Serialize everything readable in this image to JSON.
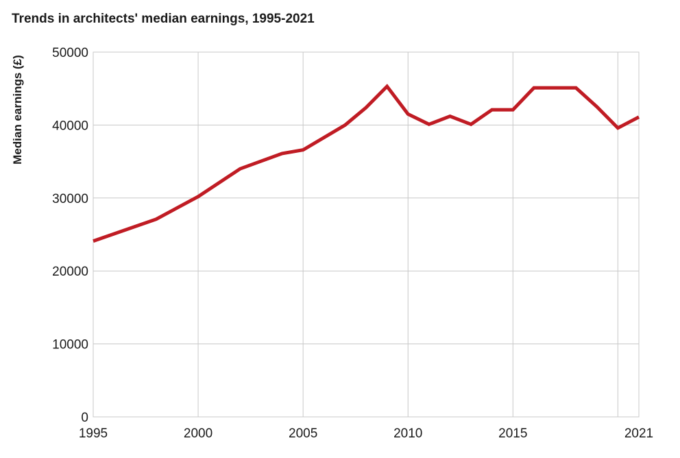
{
  "chart_data": {
    "type": "line",
    "title": "Trends in architects' median earnings, 1995-2021",
    "xlabel": "",
    "ylabel": "Median earnings (£)",
    "xlim": [
      1995,
      2021
    ],
    "ylim": [
      0,
      50000
    ],
    "x_ticks": [
      1995,
      2000,
      2005,
      2010,
      2015,
      2021
    ],
    "x_tick_labels": [
      "1995",
      "2000",
      "2005",
      "2010",
      "2015",
      "2021"
    ],
    "x_gridlines": [
      1995,
      2000,
      2005,
      2010,
      2015,
      2020
    ],
    "y_ticks": [
      0,
      10000,
      20000,
      30000,
      40000,
      50000
    ],
    "y_tick_labels": [
      "0",
      "10000",
      "20000",
      "30000",
      "40000",
      "50000"
    ],
    "grid": true,
    "series": [
      {
        "color": "#c01c24",
        "x": [
          1995,
          1998,
          2000,
          2002,
          2004,
          2005,
          2007,
          2008,
          2009,
          2010,
          2011,
          2012,
          2013,
          2014,
          2015,
          2016,
          2017,
          2018,
          2019,
          2020,
          2021
        ],
        "y": [
          24100,
          27100,
          30200,
          34000,
          36100,
          36600,
          40000,
          42400,
          45300,
          41500,
          40100,
          41200,
          40100,
          42100,
          42100,
          45100,
          45100,
          45100,
          42500,
          39600,
          41100
        ]
      }
    ]
  }
}
